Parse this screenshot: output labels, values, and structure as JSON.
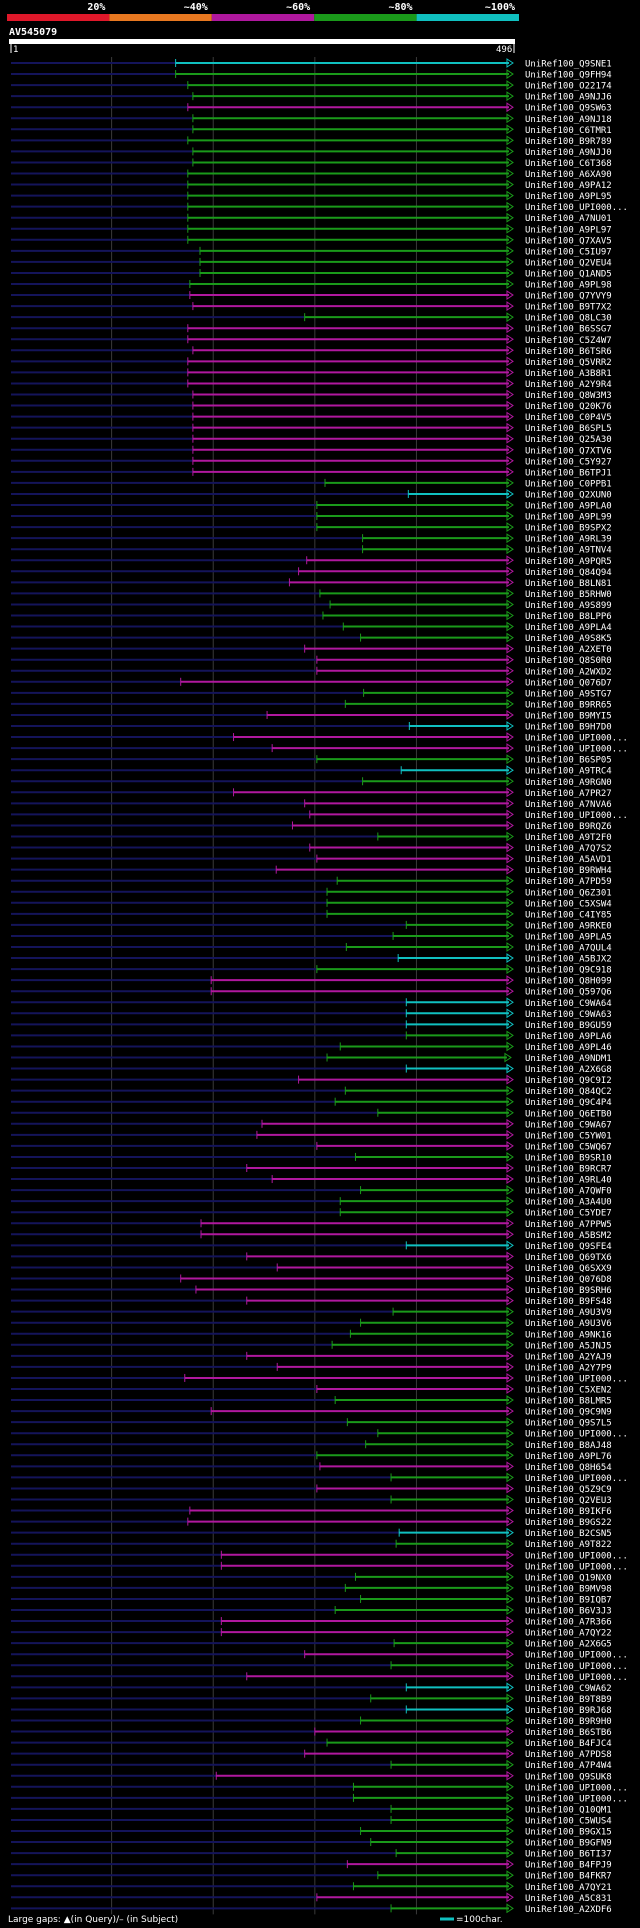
{
  "chart_data": {
    "type": "alignment-overview",
    "title": "AV545079",
    "query_start": "1",
    "query_end": "496",
    "query_length": 496,
    "identity_legend": [
      {
        "label": "20%",
        "color": "#e0182a"
      },
      {
        "label": "~40%",
        "color": "#e87820"
      },
      {
        "label": "~60%",
        "color": "#b0189e"
      },
      {
        "label": "~80%",
        "color": "#1a9a1a"
      },
      {
        "label": "~100%",
        "color": "#10c0c0"
      }
    ],
    "footer_gap_text": "Large gaps: ▲(in Query)/– (in Subject)",
    "scale_label": "=100char.",
    "hits": [
      {
        "name": "UniRef100_Q9SNE1",
        "start": 163,
        "end": 495,
        "c": 4
      },
      {
        "name": "UniRef100_Q9FH94",
        "start": 163,
        "end": 495,
        "c": 3
      },
      {
        "name": "UniRef100_O22174",
        "start": 175,
        "end": 495,
        "c": 3
      },
      {
        "name": "UniRef100_A9NJJ6",
        "start": 180,
        "end": 495,
        "c": 3
      },
      {
        "name": "UniRef100_Q9SW63",
        "start": 175,
        "end": 495,
        "c": 2
      },
      {
        "name": "UniRef100_A9NJ18",
        "start": 180,
        "end": 495,
        "c": 3
      },
      {
        "name": "UniRef100_C6TMR1",
        "start": 180,
        "end": 495,
        "c": 3
      },
      {
        "name": "UniRef100_B9R789",
        "start": 175,
        "end": 495,
        "c": 3
      },
      {
        "name": "UniRef100_A9NJJ0",
        "start": 180,
        "end": 495,
        "c": 3
      },
      {
        "name": "UniRef100_C6T368",
        "start": 180,
        "end": 495,
        "c": 3
      },
      {
        "name": "UniRef100_A6XA90",
        "start": 175,
        "end": 495,
        "c": 3
      },
      {
        "name": "UniRef100_A9PA12",
        "start": 175,
        "end": 495,
        "c": 3
      },
      {
        "name": "UniRef100_A9PL95",
        "start": 175,
        "end": 495,
        "c": 3
      },
      {
        "name": "UniRef100_UPI000...",
        "start": 175,
        "end": 495,
        "c": 3
      },
      {
        "name": "UniRef100_A7NU01",
        "start": 175,
        "end": 495,
        "c": 3
      },
      {
        "name": "UniRef100_A9PL97",
        "start": 175,
        "end": 495,
        "c": 3
      },
      {
        "name": "UniRef100_Q7XAV5",
        "start": 175,
        "end": 495,
        "c": 3
      },
      {
        "name": "UniRef100_C5IU97",
        "start": 187,
        "end": 495,
        "c": 3
      },
      {
        "name": "UniRef100_Q2VEU4",
        "start": 187,
        "end": 495,
        "c": 3
      },
      {
        "name": "UniRef100_Q1AND5",
        "start": 187,
        "end": 495,
        "c": 3
      },
      {
        "name": "UniRef100_A9PL98",
        "start": 177,
        "end": 495,
        "c": 3
      },
      {
        "name": "UniRef100_Q7YVY9",
        "start": 177,
        "end": 495,
        "c": 2
      },
      {
        "name": "UniRef100_B9T7X2",
        "start": 180,
        "end": 495,
        "c": 2
      },
      {
        "name": "UniRef100_Q8LC30",
        "start": 290,
        "end": 495,
        "c": 3
      },
      {
        "name": "UniRef100_B6SSG7",
        "start": 175,
        "end": 495,
        "c": 2
      },
      {
        "name": "UniRef100_C5Z4W7",
        "start": 175,
        "end": 495,
        "c": 2
      },
      {
        "name": "UniRef100_B6TSR6",
        "start": 180,
        "end": 495,
        "c": 2
      },
      {
        "name": "UniRef100_Q5VRR2",
        "start": 175,
        "end": 495,
        "c": 2
      },
      {
        "name": "UniRef100_A3B8R1",
        "start": 175,
        "end": 495,
        "c": 2
      },
      {
        "name": "UniRef100_A2Y9R4",
        "start": 175,
        "end": 495,
        "c": 2
      },
      {
        "name": "UniRef100_Q8W3M3",
        "start": 180,
        "end": 495,
        "c": 2
      },
      {
        "name": "UniRef100_Q20K76",
        "start": 180,
        "end": 495,
        "c": 2
      },
      {
        "name": "UniRef100_C0P4V5",
        "start": 180,
        "end": 495,
        "c": 2
      },
      {
        "name": "UniRef100_B6SPL5",
        "start": 180,
        "end": 495,
        "c": 2
      },
      {
        "name": "UniRef100_Q25A30",
        "start": 180,
        "end": 495,
        "c": 2
      },
      {
        "name": "UniRef100_Q7XTV6",
        "start": 180,
        "end": 495,
        "c": 2
      },
      {
        "name": "UniRef100_C5Y927",
        "start": 180,
        "end": 495,
        "c": 2
      },
      {
        "name": "UniRef100_B6TPJ1",
        "start": 180,
        "end": 495,
        "c": 2
      },
      {
        "name": "UniRef100_C0PPB1",
        "start": 310,
        "end": 495,
        "c": 3
      },
      {
        "name": "UniRef100_Q2XUN0",
        "start": 392,
        "end": 495,
        "c": 4
      },
      {
        "name": "UniRef100_A9PLA0",
        "start": 302,
        "end": 495,
        "c": 3
      },
      {
        "name": "UniRef100_A9PL99",
        "start": 302,
        "end": 495,
        "c": 3
      },
      {
        "name": "UniRef100_B9SPX2",
        "start": 302,
        "end": 495,
        "c": 3
      },
      {
        "name": "UniRef100_A9RL39",
        "start": 347,
        "end": 495,
        "c": 3
      },
      {
        "name": "UniRef100_A9TNV4",
        "start": 347,
        "end": 495,
        "c": 3
      },
      {
        "name": "UniRef100_A9PQR5",
        "start": 292,
        "end": 495,
        "c": 2
      },
      {
        "name": "UniRef100_Q84Q94",
        "start": 284,
        "end": 495,
        "c": 2
      },
      {
        "name": "UniRef100_B8LN81",
        "start": 275,
        "end": 495,
        "c": 2
      },
      {
        "name": "UniRef100_B5RHW0",
        "start": 305,
        "end": 495,
        "c": 3
      },
      {
        "name": "UniRef100_A9S899",
        "start": 315,
        "end": 495,
        "c": 3
      },
      {
        "name": "UniRef100_B8LPP6",
        "start": 308,
        "end": 495,
        "c": 3
      },
      {
        "name": "UniRef100_A9PLA4",
        "start": 328,
        "end": 495,
        "c": 3
      },
      {
        "name": "UniRef100_A9S8K5",
        "start": 345,
        "end": 495,
        "c": 3
      },
      {
        "name": "UniRef100_A2XET0",
        "start": 290,
        "end": 495,
        "c": 2
      },
      {
        "name": "UniRef100_Q8S0R0",
        "start": 302,
        "end": 495,
        "c": 2
      },
      {
        "name": "UniRef100_A2WXD2",
        "start": 302,
        "end": 495,
        "c": 2
      },
      {
        "name": "UniRef100_Q076D7",
        "start": 168,
        "end": 495,
        "c": 2
      },
      {
        "name": "UniRef100_A9STG7",
        "start": 348,
        "end": 495,
        "c": 3
      },
      {
        "name": "UniRef100_B9RR65",
        "start": 330,
        "end": 495,
        "c": 3
      },
      {
        "name": "UniRef100_B9MYI5",
        "start": 253,
        "end": 495,
        "c": 2
      },
      {
        "name": "UniRef100_B9H7D0",
        "start": 393,
        "end": 495,
        "c": 4
      },
      {
        "name": "UniRef100_UPI000...",
        "start": 220,
        "end": 495,
        "c": 2
      },
      {
        "name": "UniRef100_UPI000...",
        "start": 258,
        "end": 495,
        "c": 2
      },
      {
        "name": "UniRef100_B6SP05",
        "start": 302,
        "end": 495,
        "c": 3
      },
      {
        "name": "UniRef100_A9TRC4",
        "start": 385,
        "end": 495,
        "c": 4
      },
      {
        "name": "UniRef100_A9RGN0",
        "start": 347,
        "end": 495,
        "c": 3
      },
      {
        "name": "UniRef100_A7PR27",
        "start": 220,
        "end": 495,
        "c": 2
      },
      {
        "name": "UniRef100_A7NVA6",
        "start": 290,
        "end": 495,
        "c": 2
      },
      {
        "name": "UniRef100_UPI000...",
        "start": 295,
        "end": 495,
        "c": 2
      },
      {
        "name": "UniRef100_B9RQZ6",
        "start": 278,
        "end": 495,
        "c": 2
      },
      {
        "name": "UniRef100_A9T2F0",
        "start": 362,
        "end": 495,
        "c": 3
      },
      {
        "name": "UniRef100_A7Q7S2",
        "start": 295,
        "end": 495,
        "c": 2
      },
      {
        "name": "UniRef100_A5AVD1",
        "start": 302,
        "end": 495,
        "c": 2
      },
      {
        "name": "UniRef100_B9RWH4",
        "start": 262,
        "end": 495,
        "c": 2
      },
      {
        "name": "UniRef100_A7PD59",
        "start": 322,
        "end": 495,
        "c": 3
      },
      {
        "name": "UniRef100_Q6Z301",
        "start": 312,
        "end": 495,
        "c": 3
      },
      {
        "name": "UniRef100_C5XSW4",
        "start": 312,
        "end": 495,
        "c": 3
      },
      {
        "name": "UniRef100_C4IY85",
        "start": 312,
        "end": 495,
        "c": 3
      },
      {
        "name": "UniRef100_A9RKE0",
        "start": 390,
        "end": 495,
        "c": 3
      },
      {
        "name": "UniRef100_A9PLA5",
        "start": 377,
        "end": 495,
        "c": 3
      },
      {
        "name": "UniRef100_A7QUL4",
        "start": 331,
        "end": 495,
        "c": 3
      },
      {
        "name": "UniRef100_A5BJX2",
        "start": 382,
        "end": 495,
        "c": 4
      },
      {
        "name": "UniRef100_Q9C918",
        "start": 302,
        "end": 495,
        "c": 3
      },
      {
        "name": "UniRef100_Q8H099",
        "start": 198,
        "end": 495,
        "c": 2
      },
      {
        "name": "UniRef100_Q597Q6",
        "start": 198,
        "end": 495,
        "c": 2
      },
      {
        "name": "UniRef100_C9WA64",
        "start": 390,
        "end": 495,
        "c": 4
      },
      {
        "name": "UniRef100_C9WA63",
        "start": 390,
        "end": 495,
        "c": 4
      },
      {
        "name": "UniRef100_B9GU59",
        "start": 390,
        "end": 495,
        "c": 4
      },
      {
        "name": "UniRef100_A9PLA6",
        "start": 390,
        "end": 495,
        "c": 3
      },
      {
        "name": "UniRef100_A9PL46",
        "start": 325,
        "end": 495,
        "c": 3
      },
      {
        "name": "UniRef100_A9NDM1",
        "start": 312,
        "end": 493,
        "c": 3
      },
      {
        "name": "UniRef100_A2X6G8",
        "start": 390,
        "end": 495,
        "c": 4
      },
      {
        "name": "UniRef100_Q9C9I2",
        "start": 284,
        "end": 495,
        "c": 2
      },
      {
        "name": "UniRef100_Q84QC2",
        "start": 330,
        "end": 495,
        "c": 3
      },
      {
        "name": "UniRef100_Q9C4P4",
        "start": 320,
        "end": 495,
        "c": 3
      },
      {
        "name": "UniRef100_Q6ETB0",
        "start": 362,
        "end": 495,
        "c": 3
      },
      {
        "name": "UniRef100_C9WA67",
        "start": 248,
        "end": 495,
        "c": 2
      },
      {
        "name": "UniRef100_C5YW01",
        "start": 243,
        "end": 495,
        "c": 2
      },
      {
        "name": "UniRef100_C5WQ67",
        "start": 302,
        "end": 495,
        "c": 2
      },
      {
        "name": "UniRef100_B9SR10",
        "start": 340,
        "end": 495,
        "c": 3
      },
      {
        "name": "UniRef100_B9RCR7",
        "start": 233,
        "end": 495,
        "c": 2
      },
      {
        "name": "UniRef100_A9RL40",
        "start": 258,
        "end": 495,
        "c": 2
      },
      {
        "name": "UniRef100_A7QWF0",
        "start": 345,
        "end": 495,
        "c": 3
      },
      {
        "name": "UniRef100_A3A4U0",
        "start": 325,
        "end": 495,
        "c": 3
      },
      {
        "name": "UniRef100_C5YDE7",
        "start": 325,
        "end": 495,
        "c": 3
      },
      {
        "name": "UniRef100_A7PPW5",
        "start": 188,
        "end": 495,
        "c": 2
      },
      {
        "name": "UniRef100_A5BSM2",
        "start": 188,
        "end": 495,
        "c": 2
      },
      {
        "name": "UniRef100_Q9SFE4",
        "start": 390,
        "end": 495,
        "c": 4
      },
      {
        "name": "UniRef100_Q69TX6",
        "start": 233,
        "end": 495,
        "c": 2
      },
      {
        "name": "UniRef100_Q6SXX9",
        "start": 263,
        "end": 495,
        "c": 2
      },
      {
        "name": "UniRef100_Q076D8",
        "start": 168,
        "end": 495,
        "c": 2
      },
      {
        "name": "UniRef100_B9SRH6",
        "start": 183,
        "end": 495,
        "c": 2
      },
      {
        "name": "UniRef100_B9FS48",
        "start": 233,
        "end": 495,
        "c": 2
      },
      {
        "name": "UniRef100_A9U3V9",
        "start": 377,
        "end": 495,
        "c": 3
      },
      {
        "name": "UniRef100_A9U3V6",
        "start": 345,
        "end": 495,
        "c": 3
      },
      {
        "name": "UniRef100_A9NK16",
        "start": 335,
        "end": 495,
        "c": 3
      },
      {
        "name": "UniRef100_A5JNJ5",
        "start": 317,
        "end": 495,
        "c": 3
      },
      {
        "name": "UniRef100_A2YAJ9",
        "start": 233,
        "end": 495,
        "c": 2
      },
      {
        "name": "UniRef100_A2Y7P9",
        "start": 263,
        "end": 495,
        "c": 2
      },
      {
        "name": "UniRef100_UPI000...",
        "start": 172,
        "end": 495,
        "c": 2
      },
      {
        "name": "UniRef100_C5XEN2",
        "start": 302,
        "end": 495,
        "c": 2
      },
      {
        "name": "UniRef100_B8LMR5",
        "start": 320,
        "end": 495,
        "c": 3
      },
      {
        "name": "UniRef100_Q9C9N9",
        "start": 198,
        "end": 495,
        "c": 2
      },
      {
        "name": "UniRef100_Q9S7L5",
        "start": 332,
        "end": 495,
        "c": 3
      },
      {
        "name": "UniRef100_UPI000...",
        "start": 362,
        "end": 495,
        "c": 3
      },
      {
        "name": "UniRef100_B8AJ48",
        "start": 350,
        "end": 495,
        "c": 3
      },
      {
        "name": "UniRef100_A9PL76",
        "start": 302,
        "end": 495,
        "c": 3
      },
      {
        "name": "UniRef100_Q8H654",
        "start": 305,
        "end": 495,
        "c": 2
      },
      {
        "name": "UniRef100_UPI000...",
        "start": 375,
        "end": 495,
        "c": 3
      },
      {
        "name": "UniRef100_Q5Z9C9",
        "start": 302,
        "end": 495,
        "c": 2
      },
      {
        "name": "UniRef100_Q2VEU3",
        "start": 375,
        "end": 495,
        "c": 3
      },
      {
        "name": "UniRef100_B9IKF6",
        "start": 177,
        "end": 495,
        "c": 2
      },
      {
        "name": "UniRef100_B9GS22",
        "start": 175,
        "end": 495,
        "c": 2
      },
      {
        "name": "UniRef100_B2CSN5",
        "start": 383,
        "end": 495,
        "c": 4
      },
      {
        "name": "UniRef100_A9T822",
        "start": 380,
        "end": 495,
        "c": 3
      },
      {
        "name": "UniRef100_UPI000...",
        "start": 208,
        "end": 495,
        "c": 2
      },
      {
        "name": "UniRef100_UPI000...",
        "start": 208,
        "end": 495,
        "c": 2
      },
      {
        "name": "UniRef100_Q19NX0",
        "start": 340,
        "end": 495,
        "c": 3
      },
      {
        "name": "UniRef100_B9MV98",
        "start": 330,
        "end": 495,
        "c": 3
      },
      {
        "name": "UniRef100_B9IQB7",
        "start": 345,
        "end": 495,
        "c": 3
      },
      {
        "name": "UniRef100_B6V3J3",
        "start": 320,
        "end": 495,
        "c": 3
      },
      {
        "name": "UniRef100_A7R366",
        "start": 208,
        "end": 495,
        "c": 2
      },
      {
        "name": "UniRef100_A7QY22",
        "start": 208,
        "end": 495,
        "c": 2
      },
      {
        "name": "UniRef100_A2X6G5",
        "start": 378,
        "end": 495,
        "c": 3
      },
      {
        "name": "UniRef100_UPI000...",
        "start": 290,
        "end": 495,
        "c": 2
      },
      {
        "name": "UniRef100_UPI000...",
        "start": 375,
        "end": 495,
        "c": 3
      },
      {
        "name": "UniRef100_UPI000...",
        "start": 233,
        "end": 495,
        "c": 2
      },
      {
        "name": "UniRef100_C9WA62",
        "start": 390,
        "end": 495,
        "c": 4
      },
      {
        "name": "UniRef100_B9T8B9",
        "start": 355,
        "end": 495,
        "c": 3
      },
      {
        "name": "UniRef100_B9RJ68",
        "start": 390,
        "end": 495,
        "c": 4
      },
      {
        "name": "UniRef100_B9R9H0",
        "start": 345,
        "end": 495,
        "c": 3
      },
      {
        "name": "UniRef100_B6STB6",
        "start": 300,
        "end": 495,
        "c": 2
      },
      {
        "name": "UniRef100_B4FJC4",
        "start": 312,
        "end": 495,
        "c": 3
      },
      {
        "name": "UniRef100_A7PDS8",
        "start": 290,
        "end": 495,
        "c": 2
      },
      {
        "name": "UniRef100_A7P4W4",
        "start": 375,
        "end": 495,
        "c": 3
      },
      {
        "name": "UniRef100_Q9SUK8",
        "start": 203,
        "end": 495,
        "c": 2
      },
      {
        "name": "UniRef100_UPI000...",
        "start": 338,
        "end": 495,
        "c": 3
      },
      {
        "name": "UniRef100_UPI000...",
        "start": 338,
        "end": 495,
        "c": 3
      },
      {
        "name": "UniRef100_Q10QM1",
        "start": 375,
        "end": 495,
        "c": 3
      },
      {
        "name": "UniRef100_C5WUS4",
        "start": 375,
        "end": 495,
        "c": 3
      },
      {
        "name": "UniRef100_B9GX15",
        "start": 345,
        "end": 495,
        "c": 3
      },
      {
        "name": "UniRef100_B9GFN9",
        "start": 355,
        "end": 495,
        "c": 3
      },
      {
        "name": "UniRef100_B6TI37",
        "start": 380,
        "end": 495,
        "c": 3
      },
      {
        "name": "UniRef100_B4FPJ9",
        "start": 332,
        "end": 495,
        "c": 2
      },
      {
        "name": "UniRef100_B4FKR7",
        "start": 362,
        "end": 495,
        "c": 3
      },
      {
        "name": "UniRef100_A7QY21",
        "start": 338,
        "end": 495,
        "c": 3
      },
      {
        "name": "UniRef100_A5C831",
        "start": 302,
        "end": 495,
        "c": 2
      },
      {
        "name": "UniRef100_A2XDF6",
        "start": 375,
        "end": 495,
        "c": 3
      }
    ]
  }
}
